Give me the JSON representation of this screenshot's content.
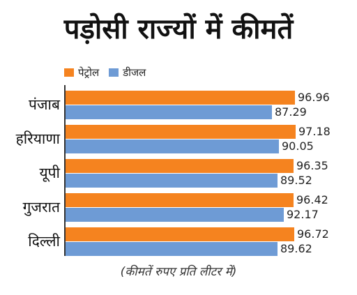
{
  "header": {
    "title": "पड़ोसी राज्यों में कीमतें"
  },
  "footer": {
    "note": "(कीमतें रुपए प्रति लीटर में)"
  },
  "colors": {
    "petrol": "#F5831F",
    "diesel": "#6E9BD5"
  },
  "chart_data": {
    "type": "bar",
    "orientation": "horizontal",
    "title": "पड़ोसी राज्यों में कीमतें",
    "categories": [
      "पंजाब",
      "हरियाणा",
      "यूपी",
      "गुजरात",
      "दिल्ली"
    ],
    "series": [
      {
        "name": "पेट्रोल",
        "color": "#F5831F",
        "values": [
          96.96,
          97.18,
          96.35,
          96.42,
          96.72
        ],
        "labels": [
          "96.96",
          "97.18",
          "96.35",
          "96.42",
          "96.72"
        ]
      },
      {
        "name": "डीजल",
        "color": "#6E9BD5",
        "values": [
          87.29,
          90.05,
          89.52,
          92.17,
          89.62
        ],
        "labels": [
          "87.29",
          "90.05",
          "89.52",
          "92.17",
          "89.62"
        ]
      }
    ],
    "xlim": [
      0,
      97.18
    ],
    "grid": false,
    "legend": "top-left"
  }
}
